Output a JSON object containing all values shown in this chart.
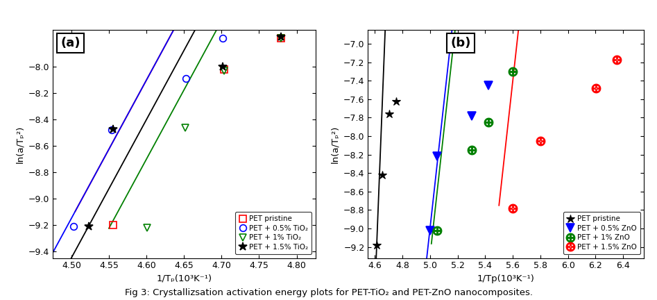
{
  "fig_title": "Fig 3: Crystallizsation activation energy plots for PET-TiO₂ and PET-ZnO nanocomposites.",
  "panel_a": {
    "label": "(a)",
    "xlabel": "1/Tₚ(10³K⁻¹)",
    "ylabel": "ln(a/Tₚ²)",
    "xlim": [
      4.475,
      4.825
    ],
    "ylim": [
      -9.45,
      -7.72
    ],
    "yticks": [
      -9.4,
      -9.2,
      -9.0,
      -8.8,
      -8.6,
      -8.4,
      -8.2,
      -8.0
    ],
    "xticks": [
      4.5,
      4.55,
      4.6,
      4.65,
      4.7,
      4.75,
      4.8
    ],
    "series": [
      {
        "label": "PET pristine",
        "color": "red",
        "marker": "s",
        "marker_facecolor": "none",
        "marker_edgecolor": "red",
        "x_data": [
          4.556,
          4.703,
          4.779
        ],
        "y_data": [
          -9.2,
          -8.02,
          -7.78
        ],
        "line_x": [
          4.505,
          4.825
        ],
        "line_slope": 10.5,
        "line_intercept": -56.4
      },
      {
        "label": "PET + 0.5% TiO₂",
        "color": "blue",
        "marker": "o",
        "marker_facecolor": "none",
        "marker_edgecolor": "blue",
        "x_data": [
          4.503,
          4.554,
          4.653,
          4.702
        ],
        "y_data": [
          -9.21,
          -8.48,
          -8.09,
          -7.78
        ],
        "line_x": [
          4.475,
          4.735
        ],
        "line_slope": 10.5,
        "line_intercept": -56.4
      },
      {
        "label": "PET + 1% TiO₂",
        "color": "green",
        "marker": "v",
        "marker_facecolor": "none",
        "marker_edgecolor": "green",
        "x_data": [
          4.601,
          4.652,
          4.703,
          4.779
        ],
        "y_data": [
          -9.22,
          -8.46,
          -8.03,
          -7.78
        ],
        "line_x": [
          4.55,
          4.825
        ],
        "line_slope": 10.5,
        "line_intercept": -57.0
      },
      {
        "label": "PET + 1.5% TiO₂",
        "color": "black",
        "marker": "*",
        "marker_facecolor": "black",
        "marker_edgecolor": "black",
        "x_data": [
          4.523,
          4.556,
          4.702,
          4.779
        ],
        "y_data": [
          -9.21,
          -8.47,
          -8.0,
          -7.77
        ],
        "line_x": [
          4.475,
          4.825
        ],
        "line_slope": 10.5,
        "line_intercept": -56.7
      }
    ]
  },
  "panel_b": {
    "label": "(b)",
    "xlabel": "1/Tp(10³K⁻¹)",
    "ylabel": "ln(a/Tₚ²)",
    "xlim": [
      4.55,
      6.55
    ],
    "ylim": [
      -9.32,
      -6.85
    ],
    "yticks": [
      -9.2,
      -9.0,
      -8.8,
      -8.6,
      -8.4,
      -8.2,
      -8.0,
      -7.8,
      -7.6,
      -7.4,
      -7.2,
      -7.0
    ],
    "xticks": [
      4.6,
      4.8,
      5.0,
      5.2,
      5.4,
      5.6,
      5.8,
      6.0,
      6.2,
      6.4
    ],
    "series": [
      {
        "label": "PET pristine",
        "color": "black",
        "marker": "*",
        "marker_facecolor": "black",
        "marker_edgecolor": "black",
        "x_data": [
          4.612,
          4.653,
          4.703,
          4.755
        ],
        "y_data": [
          -9.18,
          -8.42,
          -7.76,
          -7.62
        ],
        "line_x": [
          4.58,
          4.775
        ],
        "line_slope": 38.0,
        "line_intercept": -184.5
      },
      {
        "label": "PET + 0.5% ZnO",
        "color": "blue",
        "marker": "v",
        "marker_facecolor": "blue",
        "marker_edgecolor": "blue",
        "x_data": [
          5.003,
          5.053,
          5.302,
          5.421
        ],
        "y_data": [
          -9.02,
          -8.22,
          -7.78,
          -7.45
        ],
        "line_x": [
          4.96,
          5.49
        ],
        "line_slope": 13.5,
        "line_intercept": -76.5
      },
      {
        "label": "PET + 1% ZnO",
        "color": "green",
        "marker": "circle_plus",
        "marker_facecolor": "none",
        "marker_edgecolor": "green",
        "x_data": [
          5.053,
          5.302,
          5.421,
          5.601
        ],
        "y_data": [
          -9.02,
          -8.15,
          -7.85,
          -7.3
        ],
        "line_x": [
          5.01,
          5.7
        ],
        "line_slope": 13.5,
        "line_intercept": -76.8
      },
      {
        "label": "PET + 1.5% ZnO",
        "color": "red",
        "marker": "square_plus",
        "marker_facecolor": "none",
        "marker_edgecolor": "red",
        "x_data": [
          5.601,
          5.802,
          6.202,
          6.352
        ],
        "y_data": [
          -8.78,
          -8.05,
          -7.48,
          -7.17
        ],
        "line_x": [
          5.5,
          6.45
        ],
        "line_slope": 13.5,
        "line_intercept": -83.0
      }
    ]
  }
}
